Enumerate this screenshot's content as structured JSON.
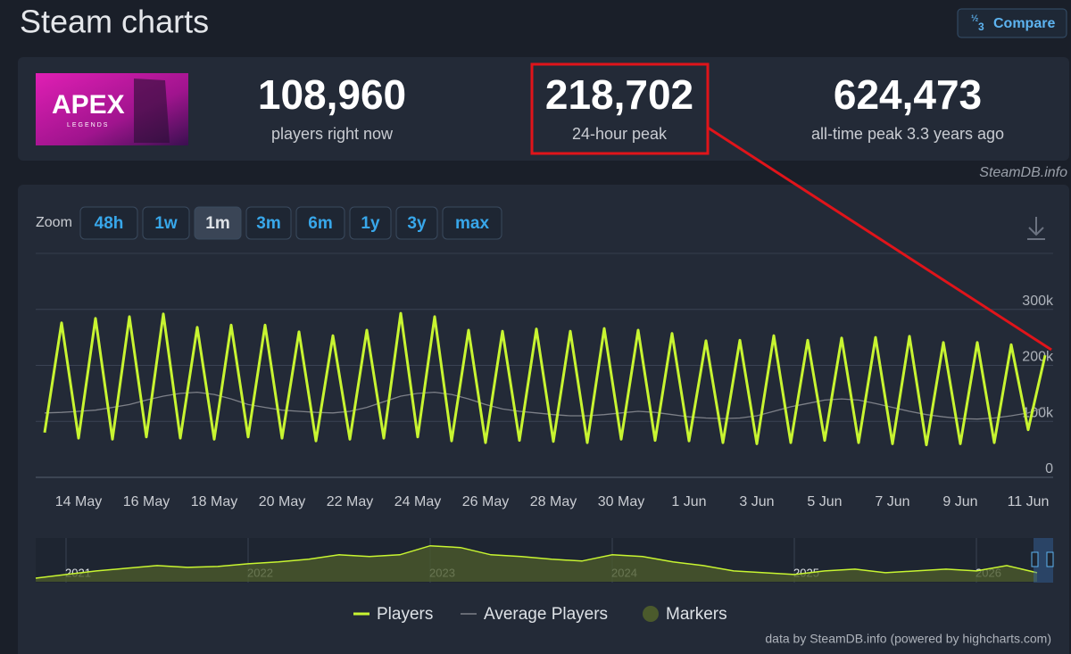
{
  "header": {
    "title": "Steam charts",
    "compare": "Compare"
  },
  "logo": {
    "title": "APEX",
    "subtitle": "LEGENDS"
  },
  "stats": [
    {
      "value": "108,960",
      "label": "players right now"
    },
    {
      "value": "218,702",
      "label": "24-hour peak"
    },
    {
      "value": "624,473",
      "label": "all-time peak 3.3 years ago"
    }
  ],
  "watermark": "SteamDB.info",
  "zoom": {
    "label": "Zoom",
    "options": [
      "48h",
      "1w",
      "1m",
      "3m",
      "6m",
      "1y",
      "3y",
      "max"
    ],
    "active": "1m"
  },
  "chart_data": {
    "type": "line",
    "categories": [
      null,
      null,
      "14 May",
      null,
      null,
      null,
      "16 May",
      null,
      null,
      null,
      "18 May",
      null,
      null,
      null,
      "20 May",
      null,
      null,
      null,
      "22 May",
      null,
      null,
      null,
      "24 May",
      null,
      null,
      null,
      "26 May",
      null,
      null,
      null,
      "28 May",
      null,
      null,
      null,
      "30 May",
      null,
      null,
      null,
      "1 Jun",
      null,
      null,
      null,
      "3 Jun",
      null,
      null,
      null,
      "5 Jun",
      null,
      null,
      null,
      "7 Jun",
      null,
      null,
      null,
      "9 Jun",
      null,
      null,
      null,
      "11 Jun",
      null
    ],
    "series": [
      {
        "name": "Players",
        "color": "#c8f531",
        "values": [
          80000,
          276000,
          70000,
          284000,
          68000,
          287000,
          72000,
          292000,
          70000,
          268000,
          68000,
          272000,
          72000,
          272000,
          70000,
          260000,
          65000,
          253000,
          68000,
          263000,
          70000,
          293000,
          72000,
          287000,
          65000,
          263000,
          62000,
          261000,
          66000,
          265000,
          64000,
          261000,
          62000,
          266000,
          68000,
          263000,
          66000,
          257000,
          65000,
          244000,
          62000,
          245000,
          60000,
          253000,
          62000,
          245000,
          66000,
          249000,
          62000,
          250000,
          60000,
          252000,
          58000,
          241000,
          60000,
          241000,
          62000,
          237000,
          85000,
          218000
        ]
      },
      {
        "name": "Average Players",
        "color": "#7d8088",
        "values": [
          115000,
          116000,
          118000,
          120000,
          125000,
          130000,
          138000,
          145000,
          150000,
          152000,
          148000,
          140000,
          130000,
          125000,
          120000,
          118000,
          116000,
          115000,
          118000,
          125000,
          135000,
          145000,
          150000,
          152000,
          148000,
          140000,
          130000,
          122000,
          118000,
          115000,
          112000,
          110000,
          110000,
          112000,
          115000,
          118000,
          116000,
          112000,
          108000,
          106000,
          105000,
          106000,
          110000,
          118000,
          126000,
          132000,
          138000,
          140000,
          138000,
          132000,
          125000,
          118000,
          112000,
          108000,
          105000,
          104000,
          106000,
          110000,
          115000,
          125000
        ]
      }
    ],
    "markers": {
      "name": "Markers",
      "color": "#4b5a2c"
    },
    "ylim": [
      0,
      400000
    ],
    "yticks": [
      0,
      {
        "value": 100000,
        "label": "100k"
      },
      {
        "value": 200000,
        "label": "200k"
      },
      {
        "value": 300000,
        "label": "300k"
      }
    ],
    "grid": true,
    "navigator": {
      "categories": [
        null,
        "2021",
        null,
        null,
        null,
        null,
        null,
        "2022",
        null,
        null,
        null,
        null,
        null,
        "2023",
        null,
        null,
        null,
        null,
        null,
        "2024",
        null,
        null,
        null,
        null,
        null,
        "2025",
        null,
        null,
        null,
        null,
        null,
        "2026",
        null,
        null
      ],
      "values": [
        48000,
        96000,
        144000,
        180000,
        216000,
        192000,
        204000,
        240000,
        264000,
        300000,
        360000,
        336000,
        360000,
        480000,
        456000,
        360000,
        336000,
        300000,
        276000,
        360000,
        336000,
        264000,
        216000,
        144000,
        120000,
        96000,
        144000,
        168000,
        120000,
        144000,
        168000,
        144000,
        216000,
        120000
      ],
      "ylim": [
        0,
        560000
      ]
    },
    "credit": "data by SteamDB.info (powered by highcharts.com)"
  }
}
